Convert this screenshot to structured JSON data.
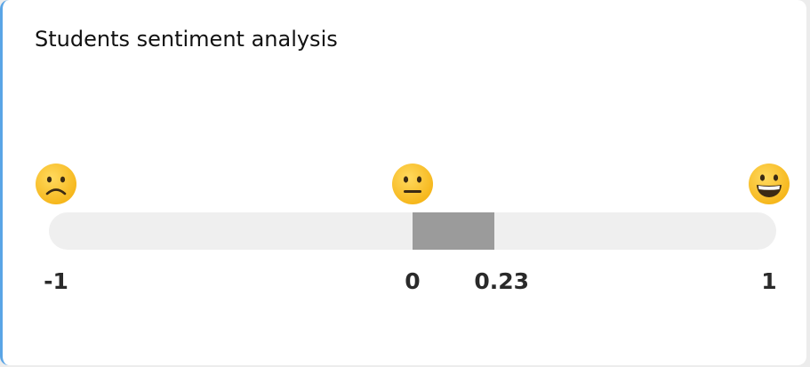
{
  "widget": {
    "title": "Students sentiment analysis",
    "scale": {
      "min": -1,
      "max": 1,
      "neutral": 0,
      "value": 0.23,
      "tick_labels": {
        "min": "-1",
        "neutral": "0",
        "value": "0.23",
        "max": "1"
      }
    },
    "icons": {
      "negative": "slightly-frowning-face-icon",
      "neutral": "neutral-face-icon",
      "positive": "grinning-face-icon"
    },
    "colors": {
      "track": "#efefef",
      "fill": "#9b9b9b",
      "accent_border": "#5aa5e6",
      "emoji_face": "#f9c23c"
    }
  }
}
